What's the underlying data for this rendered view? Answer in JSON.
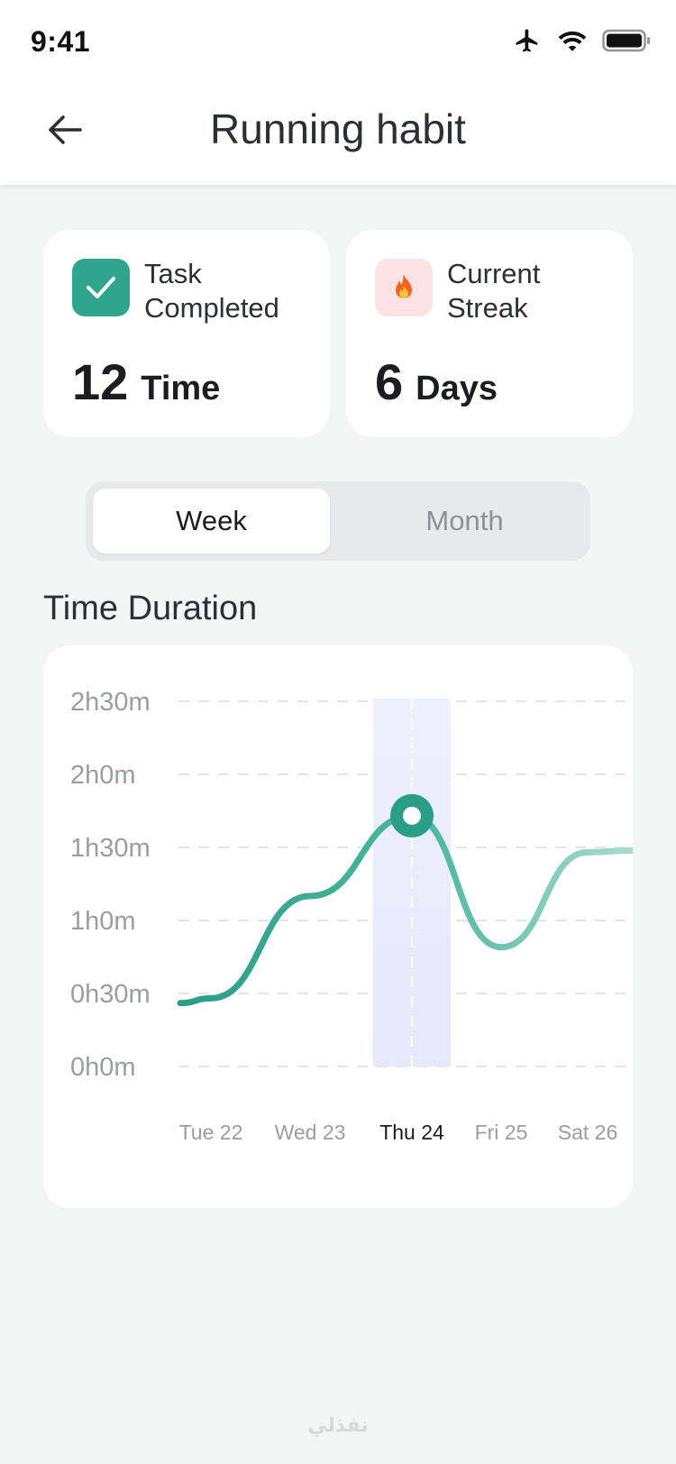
{
  "status_bar": {
    "time": "9:41",
    "icons": [
      "airplane-icon",
      "wifi-icon",
      "battery-icon"
    ]
  },
  "header": {
    "title": "Running habit",
    "back_icon": "arrow-left-icon"
  },
  "stats": {
    "task": {
      "icon": "check-icon",
      "label_line1": "Task",
      "label_line2": "Completed",
      "value": "12",
      "unit": "Time",
      "icon_color": "#2fa58d"
    },
    "streak": {
      "icon": "fire-icon",
      "label_line1": "Current",
      "label_line2": "Streak",
      "value": "6",
      "unit": "Days",
      "icon_bg": "#fde3e3"
    }
  },
  "segment": {
    "week_label": "Week",
    "month_label": "Month",
    "selected": "Week"
  },
  "section_title": "Time Duration",
  "chart_data": {
    "type": "line",
    "accent": "#2fa58d",
    "y_ticks": [
      "2h30m",
      "2h0m",
      "1h30m",
      "1h0m",
      "0h30m",
      "0h0m"
    ],
    "ylim_minutes": [
      0,
      150
    ],
    "x": [
      "Tue 22",
      "Wed 23",
      "Thu 24",
      "Fri 25",
      "Sat 26"
    ],
    "highlighted": "Thu 24",
    "series": [
      {
        "values_minutes": [
          28,
          70,
          103,
          49,
          88
        ]
      }
    ],
    "grid": true
  },
  "watermark": "نفذلي"
}
